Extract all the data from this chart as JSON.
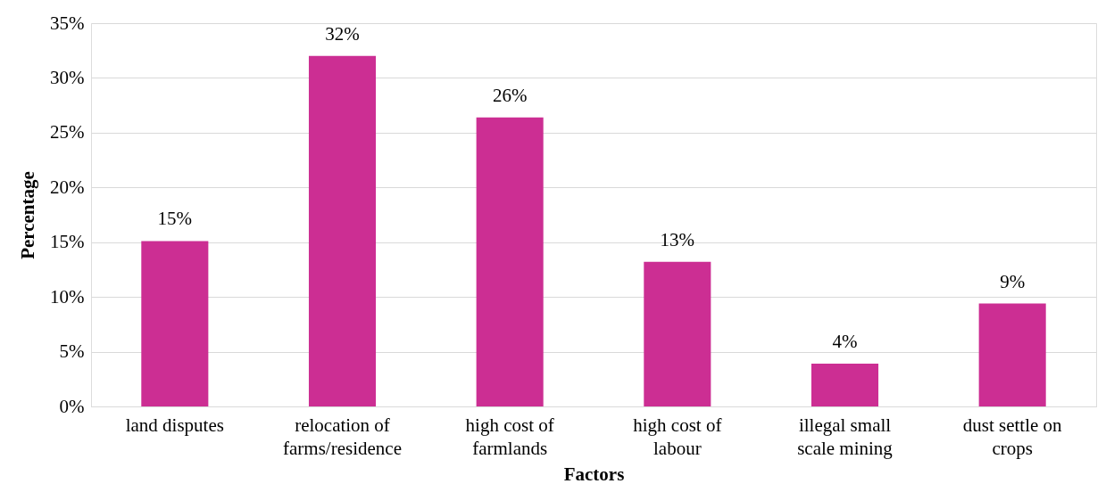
{
  "chart_data": {
    "type": "bar",
    "xlabel": "Factors",
    "ylabel": "Percentage",
    "categories": [
      "land disputes",
      "relocation of farms/residence",
      "high cost of farmlands",
      "high cost of labour",
      "illegal small scale mining",
      "dust settle on crops"
    ],
    "values": [
      15.1,
      32.0,
      26.4,
      13.2,
      3.9,
      9.4
    ],
    "value_labels": [
      "15%",
      "32%",
      "26%",
      "13%",
      "4%",
      "9%"
    ],
    "color": "#cc2e93",
    "ylim": [
      0,
      35
    ],
    "yticks": [
      {
        "value": 0,
        "label": "0%"
      },
      {
        "value": 5,
        "label": "5%"
      },
      {
        "value": 10,
        "label": "10%"
      },
      {
        "value": 15,
        "label": "15%"
      },
      {
        "value": 20,
        "label": "20%"
      },
      {
        "value": 25,
        "label": "25%"
      },
      {
        "value": 30,
        "label": "30%"
      },
      {
        "value": 35,
        "label": "35%"
      }
    ],
    "grid": "y"
  }
}
